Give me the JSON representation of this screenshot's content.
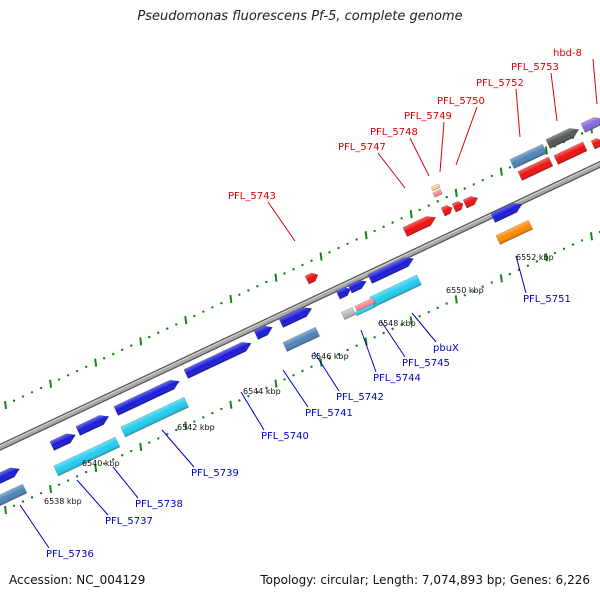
{
  "title": "Pseudomonas fluorescens Pf-5, complete genome",
  "footer": {
    "accession": "Accession: NC_004129",
    "summary": "Topology: circular; Length: 7,074,893 bp; Genes: 6,226"
  },
  "colors": {
    "label_top": "#dd0000",
    "label_bottom": "#0000cc",
    "backbone": "#888888",
    "scale_dot": "#118811",
    "blue": "#1a1ad8",
    "cyan": "#22ccee",
    "steelblue": "#4d84b8",
    "red": "#ee1111",
    "orange": "#ff8800",
    "darkgray": "#555555",
    "purple": "#8866dd",
    "lightgray": "#bbbbbb",
    "salmon": "#ff8888",
    "khaki": "#eedd88"
  },
  "scale_labels": [
    "6538 kbp",
    "6540 kbp",
    "6542 kbp",
    "6544 kbp",
    "6546 kbp",
    "6548 kbp",
    "6550 kbp",
    "6552 kbp"
  ],
  "top_labels": [
    "PFL_5743",
    "PFL_5747",
    "PFL_5748",
    "PFL_5749",
    "PFL_5750",
    "PFL_5752",
    "PFL_5753",
    "hbd-8"
  ],
  "bottom_labels": [
    "PFL_5736",
    "PFL_5737",
    "PFL_5738",
    "PFL_5739",
    "PFL_5740",
    "PFL_5741",
    "PFL_5742",
    "PFL_5744",
    "PFL_5745",
    "pbuX",
    "PFL_5751"
  ]
}
